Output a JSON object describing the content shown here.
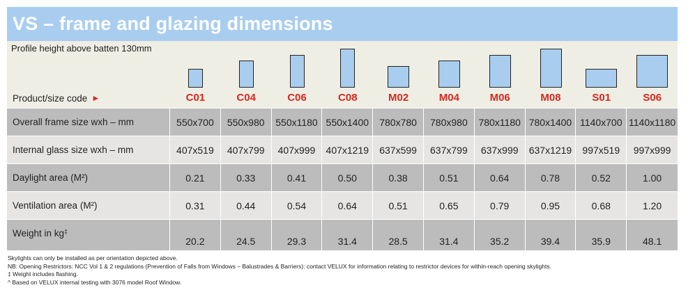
{
  "title": "VS – frame and glazing dimensions",
  "profile_note": "Profile height above batten 130mm",
  "code_label": "Product/size code",
  "arrow_glyph": "►",
  "columns": [
    "C01",
    "C04",
    "C06",
    "C08",
    "M02",
    "M04",
    "M06",
    "M08",
    "S01",
    "S06"
  ],
  "rows": [
    {
      "label": "Overall frame size wxh – mm",
      "values": [
        "550x700",
        "550x980",
        "550x1180",
        "550x1400",
        "780x780",
        "780x980",
        "780x1180",
        "780x1400",
        "1140x700",
        "1140x1180"
      ]
    },
    {
      "label": "Internal glass size wxh – mm",
      "values": [
        "407x519",
        "407x799",
        "407x999",
        "407x1219",
        "637x599",
        "637x799",
        "637x999",
        "637x1219",
        "997x519",
        "997x999"
      ]
    },
    {
      "label": "Daylight area (M²)",
      "values": [
        "0.21",
        "0.33",
        "0.41",
        "0.50",
        "0.38",
        "0.51",
        "0.64",
        "0.78",
        "0.52",
        "1.00"
      ]
    },
    {
      "label": "Ventilation area (M²)",
      "values": [
        "0.31",
        "0.44",
        "0.54",
        "0.64",
        "0.51",
        "0.65",
        "0.79",
        "0.95",
        "0.68",
        "1.20"
      ]
    },
    {
      "label": "Weight in kg",
      "label_sup": "‡",
      "values": [
        "20.2",
        "24.5",
        "29.3",
        "31.4",
        "28.5",
        "31.4",
        "35.2",
        "39.4",
        "35.9",
        "48.1"
      ]
    }
  ],
  "notes": [
    "Skylights can only be installed as per orientation depicted above.",
    "NB: Opening Restrictors: NCC Vol 1 & 2 regulations (Prevention of Falls from Windows – Balustrades & Barriers): contact VELUX for information relating to restrictor devices for within-reach opening skylights.",
    "‡ Weight includes flashing.",
    "^ Based on VELUX internal testing with 3076 model Roof Window."
  ],
  "colors": {
    "title_bar": "#a9cdee",
    "accent_red": "#d7281f",
    "row_dark": "#bbbcbb",
    "row_light": "#e6e5e3",
    "header_bg": "#efeee4"
  }
}
